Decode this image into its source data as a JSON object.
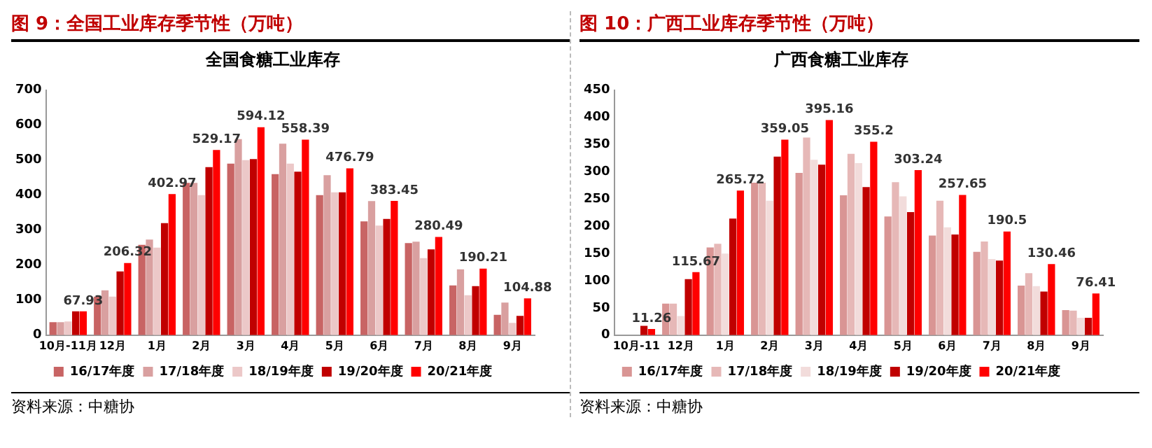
{
  "chart_data": [
    {
      "type": "bar",
      "title": "图 9：全国工业库存季节性（万吨）",
      "subtitle": "全国食糖工业库存",
      "categories": [
        "10月-11月",
        "12月",
        "1月",
        "2月",
        "3月",
        "4月",
        "5月",
        "6月",
        "7月",
        "8月",
        "9月"
      ],
      "series": [
        {
          "name": "16/17年度",
          "color": "#c86464",
          "values": [
            37,
            110,
            258,
            435,
            490,
            460,
            400,
            325,
            263,
            142,
            58
          ]
        },
        {
          "name": "17/18年度",
          "color": "#d9a0a0",
          "values": [
            37,
            128,
            273,
            435,
            560,
            547,
            457,
            383,
            267,
            188,
            93
          ]
        },
        {
          "name": "18/19年度",
          "color": "#ecc8c8",
          "values": [
            39,
            110,
            250,
            400,
            500,
            490,
            408,
            313,
            220,
            114,
            35
          ]
        },
        {
          "name": "19/20年度",
          "color": "#c00000",
          "values": [
            68,
            182,
            320,
            480,
            503,
            467,
            408,
            332,
            245,
            140,
            55
          ]
        },
        {
          "name": "20/21年度",
          "color": "#ff0000",
          "values": [
            67.93,
            206.32,
            402.97,
            529.17,
            594.12,
            558.39,
            476.79,
            383.45,
            280.49,
            190.21,
            104.88
          ],
          "value_labels": [
            "67.93",
            "206.32",
            "402.97",
            "529.17",
            "594.12",
            "558.39",
            "476.79",
            "383.45",
            "280.49",
            "190.21",
            "104.88"
          ]
        }
      ],
      "ylim": [
        0,
        700
      ],
      "yticks": [
        0,
        100,
        200,
        300,
        400,
        500,
        600,
        700
      ],
      "grid": false,
      "legend": "bottom",
      "annotations": [
        "资料来源：中糖协"
      ]
    },
    {
      "type": "bar",
      "title": "图 10：广西工业库存季节性（万吨）",
      "subtitle": "广西食糖工业库存",
      "categories": [
        "10月-11",
        "12月",
        "1月",
        "2月",
        "3月",
        "4月",
        "5月",
        "6月",
        "7月",
        "8月",
        "9月"
      ],
      "series": [
        {
          "name": "16/17年度",
          "color": "#d99594",
          "values": [
            null,
            58,
            161,
            280,
            298,
            257,
            218,
            183,
            153,
            91,
            46
          ]
        },
        {
          "name": "17/18年度",
          "color": "#e6b8b7",
          "values": [
            null,
            58,
            168,
            280,
            363,
            333,
            281,
            247,
            172,
            114,
            45
          ]
        },
        {
          "name": "18/19年度",
          "color": "#f2dcdb",
          "values": [
            null,
            35,
            150,
            247,
            322,
            316,
            255,
            198,
            140,
            90,
            32
          ]
        },
        {
          "name": "19/20年度",
          "color": "#c00000",
          "values": [
            17,
            103,
            214,
            328,
            313,
            272,
            226,
            185,
            137,
            80,
            32
          ]
        },
        {
          "name": "20/21年度",
          "color": "#ff0000",
          "values": [
            11.26,
            115.67,
            265.72,
            359.05,
            395.16,
            355.2,
            303.24,
            257.65,
            190.5,
            130.46,
            76.41
          ],
          "value_labels": [
            "11.26",
            "115.67",
            "265.72",
            "359.05",
            "395.16",
            "355.2",
            "303.24",
            "257.65",
            "190.5",
            "130.46",
            "76.41"
          ]
        }
      ],
      "ylim": [
        0,
        450
      ],
      "yticks": [
        0,
        50,
        100,
        150,
        200,
        250,
        300,
        350,
        400,
        450
      ],
      "grid": false,
      "legend": "bottom",
      "annotations": [
        "资料来源：中糖协"
      ]
    }
  ]
}
